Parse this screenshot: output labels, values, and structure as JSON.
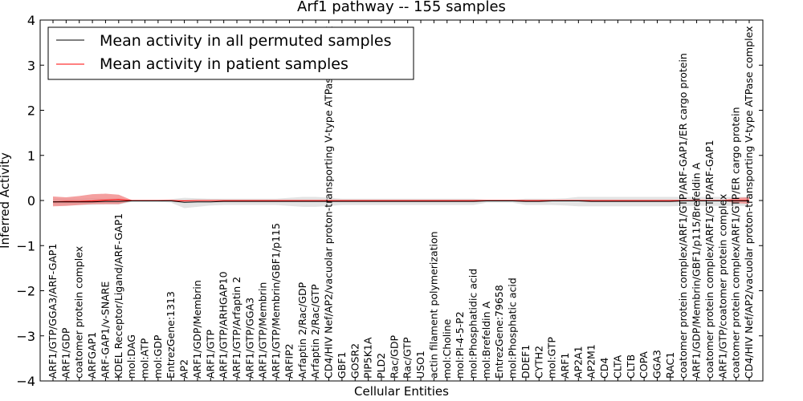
{
  "chart_data": {
    "type": "line",
    "title": "Arf1 pathway -- 155 samples",
    "xlabel": "Cellular Entities",
    "ylabel": "Inferred Activity",
    "ylim": [
      -4,
      4
    ],
    "yticks": [
      4,
      3,
      2,
      1,
      0,
      -1,
      -2,
      -3,
      -4
    ],
    "ytick_labels": [
      "4",
      "3",
      "2",
      "1",
      "0",
      "−1",
      "−2",
      "−3",
      "−4"
    ],
    "grid": false,
    "legend_position": "top-left",
    "categories": [
      "ARF1/GTP/GGA3/ARF-GAP1",
      "ARF1/GDP",
      "coatomer protein complex",
      "ARFGAP1",
      "ARF-GAP1/v-SNARE",
      "KDEL Receptor/Ligand/ARF-GAP1",
      "mol:DAG",
      "mol:ATP",
      "mol:GDP",
      "EntrezGene:1313",
      "AP2",
      "ARF1/GDP/Membrin",
      "ARF1/GTP",
      "ARF1/GTP/ARHGAP10",
      "ARF1/GTP/Arfaptin 2",
      "ARF1/GTP/GGA3",
      "ARF1/GTP/Membrin",
      "ARF1/GTP/Membrin/GBF1/p115",
      "ARFIP2",
      "Arfaptin 2/Rac/GDP",
      "Arfaptin 2/Rac/GTP",
      "CD4/HIV Nef/AP2/vacuolar proton-transporting V-type ATPase complex",
      "GBF1",
      "GOSR2",
      "PIP5K1A",
      "PLD2",
      "Rac/GDP",
      "Rac/GTP",
      "USO1",
      "actin filament polymerization",
      "mol:Choline",
      "mol:PI-4-5-P2",
      "mol:Phosphatidic acid",
      "mol:Brefeldin A",
      "EntrezGene:79658",
      "mol:Phosphatic acid",
      "DDEF1",
      "CYTH2",
      "mol:GTP",
      "ARF1",
      "AP2A1",
      "AP2M1",
      "CD4",
      "CLTA",
      "CLTB",
      "COPA",
      "GGA3",
      "RAC1",
      "coatomer protein complex/ARF1/GTP/ARF-GAP1/ER cargo protein",
      "ARF1/GDP/Membrin/GBF1/p115/Brefeldin A",
      "coatomer protein complex/ARF1/GTP/ARF-GAP1",
      "ARF1/GTP/coatomer protein complex",
      "coatomer protein complex/ARF1/GTP/ER cargo protein",
      "CD4/HIV Nef/AP2/vacuolar proton-transporting V-type ATPase complex"
    ],
    "series": [
      {
        "name": "Mean activity in all permuted samples",
        "color": "#000000",
        "values": [
          -0.03,
          -0.03,
          -0.03,
          -0.03,
          -0.02,
          -0.02,
          -0.01,
          -0.01,
          -0.01,
          -0.01,
          -0.04,
          -0.03,
          -0.03,
          -0.02,
          -0.02,
          -0.02,
          -0.02,
          -0.02,
          -0.02,
          -0.02,
          -0.02,
          -0.02,
          -0.02,
          -0.02,
          -0.02,
          -0.02,
          -0.02,
          -0.02,
          -0.02,
          -0.02,
          -0.02,
          -0.02,
          -0.02,
          -0.01,
          -0.01,
          -0.01,
          -0.02,
          -0.02,
          -0.01,
          -0.01,
          -0.01,
          -0.02,
          -0.02,
          -0.02,
          -0.02,
          -0.02,
          -0.02,
          -0.02,
          -0.01,
          -0.01,
          -0.01,
          -0.01,
          -0.01,
          -0.01
        ],
        "band_upper": [
          0.04,
          0.04,
          0.04,
          0.05,
          0.05,
          0.05,
          0.01,
          0.01,
          0.01,
          0.03,
          0.06,
          0.05,
          0.04,
          0.04,
          0.04,
          0.04,
          0.04,
          0.04,
          0.06,
          0.08,
          0.08,
          0.06,
          0.04,
          0.04,
          0.04,
          0.04,
          0.04,
          0.04,
          0.04,
          0.04,
          0.04,
          0.04,
          0.04,
          0.02,
          0.02,
          0.02,
          0.04,
          0.04,
          0.04,
          0.05,
          0.08,
          0.08,
          0.08,
          0.08,
          0.08,
          0.08,
          0.08,
          0.08,
          0.08,
          0.08,
          0.08,
          0.08,
          0.08,
          0.08
        ],
        "band_lower": [
          -0.1,
          -0.1,
          -0.1,
          -0.1,
          -0.09,
          -0.09,
          -0.03,
          -0.03,
          -0.03,
          -0.05,
          -0.17,
          -0.14,
          -0.11,
          -0.1,
          -0.1,
          -0.1,
          -0.1,
          -0.1,
          -0.12,
          -0.14,
          -0.14,
          -0.12,
          -0.1,
          -0.1,
          -0.1,
          -0.1,
          -0.1,
          -0.1,
          -0.1,
          -0.1,
          -0.1,
          -0.1,
          -0.1,
          -0.05,
          -0.05,
          -0.05,
          -0.1,
          -0.1,
          -0.1,
          -0.11,
          -0.13,
          -0.13,
          -0.13,
          -0.13,
          -0.13,
          -0.13,
          -0.13,
          -0.13,
          -0.12,
          -0.12,
          -0.12,
          -0.12,
          -0.12,
          -0.12
        ]
      },
      {
        "name": "Mean activity in patient samples",
        "color": "#ff0000",
        "values": [
          -0.03,
          -0.02,
          -0.02,
          -0.01,
          0.01,
          0.02,
          0.0,
          0.0,
          0.0,
          0.0,
          -0.01,
          0.0,
          0.0,
          0.0,
          0.0,
          0.0,
          0.0,
          0.0,
          0.0,
          0.0,
          0.0,
          0.0,
          0.0,
          0.0,
          0.0,
          0.0,
          0.0,
          0.0,
          0.0,
          0.0,
          0.0,
          0.0,
          0.0,
          0.0,
          0.0,
          0.0,
          0.0,
          0.0,
          0.0,
          0.0,
          0.0,
          0.0,
          0.0,
          0.0,
          0.0,
          0.0,
          0.0,
          0.0,
          0.0,
          0.0,
          0.0,
          0.0,
          0.0,
          0.0
        ],
        "band_upper": [
          0.09,
          0.07,
          0.1,
          0.14,
          0.15,
          0.13,
          0.01,
          0.01,
          0.01,
          0.01,
          0.01,
          0.01,
          0.01,
          0.01,
          0.01,
          0.01,
          0.01,
          0.01,
          0.01,
          0.01,
          0.01,
          0.01,
          0.01,
          0.01,
          0.01,
          0.01,
          0.01,
          0.01,
          0.01,
          0.01,
          0.01,
          0.01,
          0.01,
          0.01,
          0.01,
          0.01,
          0.01,
          0.01,
          0.01,
          0.01,
          0.01,
          0.01,
          0.01,
          0.01,
          0.01,
          0.01,
          0.01,
          0.01,
          0.01,
          0.01,
          0.01,
          0.01,
          0.06,
          0.07
        ],
        "band_lower": [
          -0.13,
          -0.12,
          -0.1,
          -0.08,
          -0.08,
          -0.08,
          -0.01,
          -0.01,
          -0.01,
          -0.01,
          -0.01,
          -0.01,
          -0.01,
          -0.01,
          -0.01,
          -0.01,
          -0.01,
          -0.01,
          -0.01,
          -0.01,
          -0.01,
          -0.01,
          -0.01,
          -0.01,
          -0.01,
          -0.01,
          -0.01,
          -0.01,
          -0.01,
          -0.01,
          -0.01,
          -0.01,
          -0.01,
          -0.01,
          -0.01,
          -0.01,
          -0.01,
          -0.01,
          -0.01,
          -0.01,
          -0.01,
          -0.01,
          -0.01,
          -0.01,
          -0.01,
          -0.01,
          -0.01,
          -0.01,
          -0.01,
          -0.01,
          -0.01,
          -0.01,
          -0.06,
          -0.07
        ]
      }
    ],
    "colors": {
      "permuted_band": "#d9d9d9",
      "patient_band": "#f08080",
      "permuted_line": "#000000",
      "patient_line": "#ff0000"
    }
  }
}
